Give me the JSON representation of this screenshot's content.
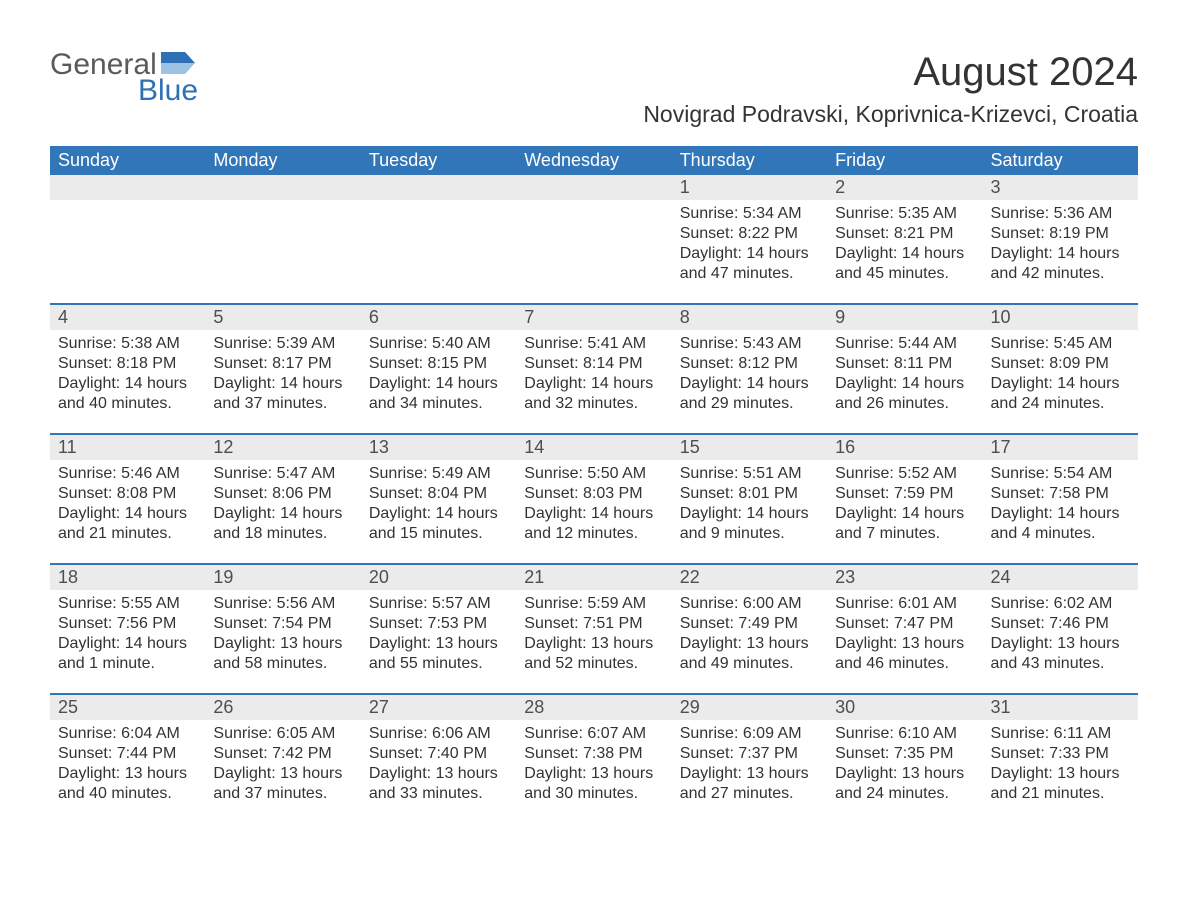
{
  "logo": {
    "word1": "General",
    "word2": "Blue",
    "flag_color": "#2f70b5",
    "text_gray": "#5a5a5a"
  },
  "title": "August 2024",
  "location": "Novigrad Podravski, Koprivnica-Krizevci, Croatia",
  "colors": {
    "header_bg": "#3176b9",
    "header_text": "#ffffff",
    "daynum_bg": "#ebebec",
    "body_text": "#333333",
    "page_bg": "#ffffff",
    "week_border": "#3176b9"
  },
  "typography": {
    "title_fontsize": 40,
    "location_fontsize": 23,
    "dow_fontsize": 18,
    "daynum_fontsize": 18,
    "body_fontsize": 16
  },
  "layout": {
    "columns": 7,
    "rows": 5,
    "first_weekday_index": 4
  },
  "daysOfWeek": [
    "Sunday",
    "Monday",
    "Tuesday",
    "Wednesday",
    "Thursday",
    "Friday",
    "Saturday"
  ],
  "weeks": [
    [
      null,
      null,
      null,
      null,
      {
        "n": "1",
        "sunrise": "Sunrise: 5:34 AM",
        "sunset": "Sunset: 8:22 PM",
        "daylight": "Daylight: 14 hours and 47 minutes."
      },
      {
        "n": "2",
        "sunrise": "Sunrise: 5:35 AM",
        "sunset": "Sunset: 8:21 PM",
        "daylight": "Daylight: 14 hours and 45 minutes."
      },
      {
        "n": "3",
        "sunrise": "Sunrise: 5:36 AM",
        "sunset": "Sunset: 8:19 PM",
        "daylight": "Daylight: 14 hours and 42 minutes."
      }
    ],
    [
      {
        "n": "4",
        "sunrise": "Sunrise: 5:38 AM",
        "sunset": "Sunset: 8:18 PM",
        "daylight": "Daylight: 14 hours and 40 minutes."
      },
      {
        "n": "5",
        "sunrise": "Sunrise: 5:39 AM",
        "sunset": "Sunset: 8:17 PM",
        "daylight": "Daylight: 14 hours and 37 minutes."
      },
      {
        "n": "6",
        "sunrise": "Sunrise: 5:40 AM",
        "sunset": "Sunset: 8:15 PM",
        "daylight": "Daylight: 14 hours and 34 minutes."
      },
      {
        "n": "7",
        "sunrise": "Sunrise: 5:41 AM",
        "sunset": "Sunset: 8:14 PM",
        "daylight": "Daylight: 14 hours and 32 minutes."
      },
      {
        "n": "8",
        "sunrise": "Sunrise: 5:43 AM",
        "sunset": "Sunset: 8:12 PM",
        "daylight": "Daylight: 14 hours and 29 minutes."
      },
      {
        "n": "9",
        "sunrise": "Sunrise: 5:44 AM",
        "sunset": "Sunset: 8:11 PM",
        "daylight": "Daylight: 14 hours and 26 minutes."
      },
      {
        "n": "10",
        "sunrise": "Sunrise: 5:45 AM",
        "sunset": "Sunset: 8:09 PM",
        "daylight": "Daylight: 14 hours and 24 minutes."
      }
    ],
    [
      {
        "n": "11",
        "sunrise": "Sunrise: 5:46 AM",
        "sunset": "Sunset: 8:08 PM",
        "daylight": "Daylight: 14 hours and 21 minutes."
      },
      {
        "n": "12",
        "sunrise": "Sunrise: 5:47 AM",
        "sunset": "Sunset: 8:06 PM",
        "daylight": "Daylight: 14 hours and 18 minutes."
      },
      {
        "n": "13",
        "sunrise": "Sunrise: 5:49 AM",
        "sunset": "Sunset: 8:04 PM",
        "daylight": "Daylight: 14 hours and 15 minutes."
      },
      {
        "n": "14",
        "sunrise": "Sunrise: 5:50 AM",
        "sunset": "Sunset: 8:03 PM",
        "daylight": "Daylight: 14 hours and 12 minutes."
      },
      {
        "n": "15",
        "sunrise": "Sunrise: 5:51 AM",
        "sunset": "Sunset: 8:01 PM",
        "daylight": "Daylight: 14 hours and 9 minutes."
      },
      {
        "n": "16",
        "sunrise": "Sunrise: 5:52 AM",
        "sunset": "Sunset: 7:59 PM",
        "daylight": "Daylight: 14 hours and 7 minutes."
      },
      {
        "n": "17",
        "sunrise": "Sunrise: 5:54 AM",
        "sunset": "Sunset: 7:58 PM",
        "daylight": "Daylight: 14 hours and 4 minutes."
      }
    ],
    [
      {
        "n": "18",
        "sunrise": "Sunrise: 5:55 AM",
        "sunset": "Sunset: 7:56 PM",
        "daylight": "Daylight: 14 hours and 1 minute."
      },
      {
        "n": "19",
        "sunrise": "Sunrise: 5:56 AM",
        "sunset": "Sunset: 7:54 PM",
        "daylight": "Daylight: 13 hours and 58 minutes."
      },
      {
        "n": "20",
        "sunrise": "Sunrise: 5:57 AM",
        "sunset": "Sunset: 7:53 PM",
        "daylight": "Daylight: 13 hours and 55 minutes."
      },
      {
        "n": "21",
        "sunrise": "Sunrise: 5:59 AM",
        "sunset": "Sunset: 7:51 PM",
        "daylight": "Daylight: 13 hours and 52 minutes."
      },
      {
        "n": "22",
        "sunrise": "Sunrise: 6:00 AM",
        "sunset": "Sunset: 7:49 PM",
        "daylight": "Daylight: 13 hours and 49 minutes."
      },
      {
        "n": "23",
        "sunrise": "Sunrise: 6:01 AM",
        "sunset": "Sunset: 7:47 PM",
        "daylight": "Daylight: 13 hours and 46 minutes."
      },
      {
        "n": "24",
        "sunrise": "Sunrise: 6:02 AM",
        "sunset": "Sunset: 7:46 PM",
        "daylight": "Daylight: 13 hours and 43 minutes."
      }
    ],
    [
      {
        "n": "25",
        "sunrise": "Sunrise: 6:04 AM",
        "sunset": "Sunset: 7:44 PM",
        "daylight": "Daylight: 13 hours and 40 minutes."
      },
      {
        "n": "26",
        "sunrise": "Sunrise: 6:05 AM",
        "sunset": "Sunset: 7:42 PM",
        "daylight": "Daylight: 13 hours and 37 minutes."
      },
      {
        "n": "27",
        "sunrise": "Sunrise: 6:06 AM",
        "sunset": "Sunset: 7:40 PM",
        "daylight": "Daylight: 13 hours and 33 minutes."
      },
      {
        "n": "28",
        "sunrise": "Sunrise: 6:07 AM",
        "sunset": "Sunset: 7:38 PM",
        "daylight": "Daylight: 13 hours and 30 minutes."
      },
      {
        "n": "29",
        "sunrise": "Sunrise: 6:09 AM",
        "sunset": "Sunset: 7:37 PM",
        "daylight": "Daylight: 13 hours and 27 minutes."
      },
      {
        "n": "30",
        "sunrise": "Sunrise: 6:10 AM",
        "sunset": "Sunset: 7:35 PM",
        "daylight": "Daylight: 13 hours and 24 minutes."
      },
      {
        "n": "31",
        "sunrise": "Sunrise: 6:11 AM",
        "sunset": "Sunset: 7:33 PM",
        "daylight": "Daylight: 13 hours and 21 minutes."
      }
    ]
  ]
}
